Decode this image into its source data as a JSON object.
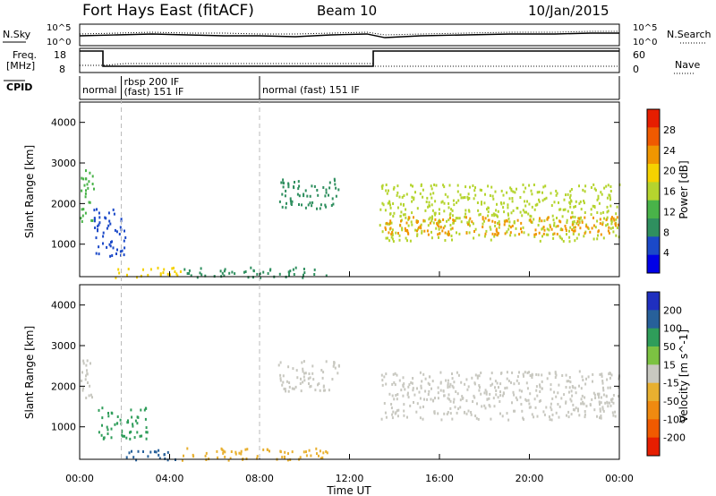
{
  "header": {
    "station": "Fort Hays East (fitACF)",
    "beam": "Beam 10",
    "date": "10/Jan/2015"
  },
  "top_panels": {
    "nsky_label": "N.Sky",
    "nsearch_label": "N.Search",
    "nsky_ticks": [
      "10^5",
      "10^0"
    ],
    "nsearch_ticks": [
      "10^5",
      "10^0"
    ],
    "freq_label_1": "Freq.",
    "freq_label_2": "[MHz]",
    "freq_ticks": [
      "18",
      "8"
    ],
    "nave_label": "Nave",
    "nave_ticks": [
      "60",
      "0"
    ],
    "cpid_label": "CPID"
  },
  "cpid_segments": [
    {
      "start_h": 0.0,
      "end_h": 1.35,
      "lines": [
        "normal"
      ]
    },
    {
      "start_h": 1.85,
      "end_h": 8.0,
      "lines": [
        "rbsp 200 IF",
        "(fast) 151 IF"
      ]
    },
    {
      "start_h": 8.0,
      "end_h": 24.0,
      "lines": [
        "normal (fast) 151 IF"
      ]
    }
  ],
  "colors": {
    "power_scale": [
      "#0000e6",
      "#1b49c8",
      "#2f8f5f",
      "#49b349",
      "#b5d42e",
      "#f5d200",
      "#f09600",
      "#f05a00",
      "#e61e00"
    ],
    "velocity_scale": [
      "#1f2fbf",
      "#27609a",
      "#2f9d5a",
      "#7cc242",
      "#c8c8c0",
      "#e8b030",
      "#f08a10",
      "#f05a00",
      "#e61e00"
    ]
  },
  "chart_data": [
    {
      "type": "heatmap",
      "name": "power",
      "xlabel": "",
      "ylabel": "Slant Range [km]",
      "xlim": [
        0,
        24
      ],
      "ylim": [
        200,
        4500
      ],
      "yticks": [
        1000,
        2000,
        3000,
        4000
      ],
      "colorbar_label": "Power [dB]",
      "colorbar_ticks": [
        "4",
        "8",
        "12",
        "16",
        "20",
        "24",
        "28"
      ],
      "regions": [
        {
          "x": [
            0.0,
            0.6
          ],
          "y": [
            1500,
            2900
          ],
          "value": 12
        },
        {
          "x": [
            0.6,
            2.0
          ],
          "y": [
            700,
            1900
          ],
          "value": 6
        },
        {
          "x": [
            1.5,
            4.5
          ],
          "y": [
            200,
            450
          ],
          "value": 18
        },
        {
          "x": [
            4.5,
            11.0
          ],
          "y": [
            200,
            450
          ],
          "value": 8
        },
        {
          "x": [
            8.8,
            11.5
          ],
          "y": [
            1900,
            2650
          ],
          "value": 8
        },
        {
          "x": [
            13.3,
            24.0
          ],
          "y": [
            1100,
            2500
          ],
          "value": 16
        },
        {
          "x": [
            13.5,
            24.0
          ],
          "y": [
            1250,
            1700
          ],
          "value": 22
        }
      ]
    },
    {
      "type": "heatmap",
      "name": "velocity",
      "xlabel": "Time UT",
      "ylabel": "Slant Range [km]",
      "xlim": [
        0,
        24
      ],
      "ylim": [
        200,
        4500
      ],
      "xticks": [
        "00:00",
        "04:00",
        "08:00",
        "12:00",
        "16:00",
        "20:00",
        "00:00"
      ],
      "yticks": [
        1000,
        2000,
        3000,
        4000
      ],
      "colorbar_label": "Velocity [m s^-1]",
      "colorbar_ticks": [
        "200",
        "100",
        "50",
        "15",
        "-15",
        "-50",
        "-100",
        "-200"
      ],
      "regions": [
        {
          "x": [
            0.0,
            0.6
          ],
          "y": [
            1700,
            2700
          ],
          "value": 0
        },
        {
          "x": [
            0.8,
            3.0
          ],
          "y": [
            700,
            1500
          ],
          "value": 60
        },
        {
          "x": [
            2.0,
            4.5
          ],
          "y": [
            200,
            450
          ],
          "value": 100
        },
        {
          "x": [
            4.5,
            11.0
          ],
          "y": [
            200,
            500
          ],
          "value": -40
        },
        {
          "x": [
            8.8,
            11.5
          ],
          "y": [
            1900,
            2650
          ],
          "value": 0
        },
        {
          "x": [
            13.3,
            24.0
          ],
          "y": [
            1200,
            2400
          ],
          "value": 0
        }
      ]
    }
  ]
}
